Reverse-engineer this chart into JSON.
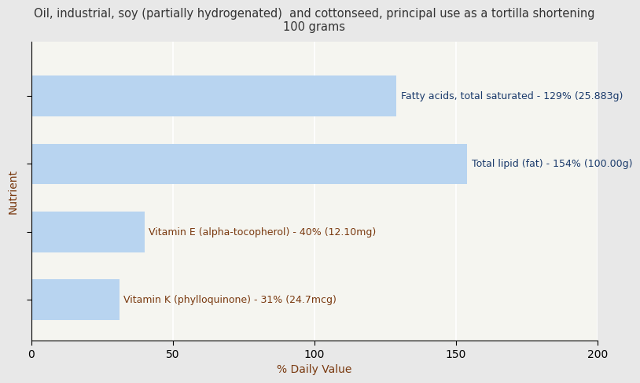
{
  "title": "Oil, industrial, soy (partially hydrogenated)  and cottonseed, principal use as a tortilla shortening\n100 grams",
  "xlabel": "% Daily Value",
  "ylabel": "Nutrient",
  "background_color": "#e8e8e8",
  "plot_bg_color": "#f5f5f0",
  "bar_color": "#b8d4f0",
  "xlim": [
    0,
    200
  ],
  "xticks": [
    0,
    50,
    100,
    150,
    200
  ],
  "values": [
    129,
    154,
    40,
    31
  ],
  "labels": [
    "Fatty acids, total saturated - 129% (25.883g)",
    "Total lipid (fat) - 154% (100.00g)",
    "Vitamin E (alpha-tocopherol) - 40% (12.10mg)",
    "Vitamin K (phylloquinone) - 31% (24.7mcg)"
  ],
  "label_colors": [
    "#1a3a6b",
    "#1a3a6b",
    "#7a3a10",
    "#7a3a10"
  ],
  "title_color": "#333333",
  "ylabel_color": "#7a3a10",
  "xlabel_color": "#7a3a10",
  "title_fontsize": 10.5,
  "label_fontsize": 9,
  "axis_label_fontsize": 10,
  "tick_fontsize": 10,
  "bar_height": 0.6
}
